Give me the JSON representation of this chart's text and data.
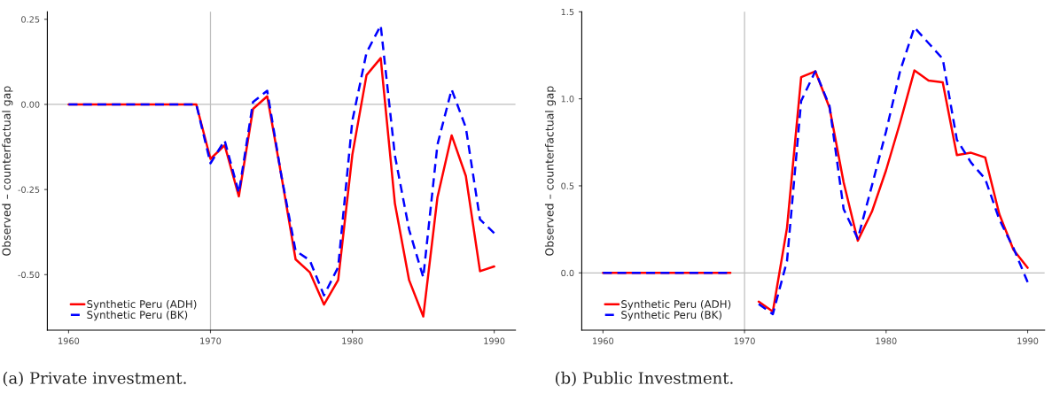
{
  "chart_data": [
    {
      "type": "line",
      "ylabel": "Observed – counterfactual gap",
      "annotations": [
        "(a) Private investment."
      ],
      "x": [
        1960,
        1961,
        1962,
        1963,
        1964,
        1965,
        1966,
        1967,
        1968,
        1969,
        1970,
        1971,
        1972,
        1973,
        1974,
        1975,
        1976,
        1977,
        1978,
        1979,
        1980,
        1981,
        1982,
        1983,
        1984,
        1985,
        1986,
        1987,
        1988,
        1989,
        1990
      ],
      "series": [
        {
          "name": "Synthetic Peru (ADH)",
          "color": "#ff0000",
          "line_style": "solid",
          "values": [
            0,
            0,
            0,
            0,
            0,
            0,
            0,
            0,
            0,
            0,
            -0.16,
            -0.12,
            -0.27,
            -0.013,
            0.024,
            -0.21,
            -0.455,
            -0.493,
            -0.588,
            -0.516,
            -0.148,
            0.086,
            0.136,
            -0.291,
            -0.516,
            -0.623,
            -0.273,
            -0.091,
            -0.21,
            -0.49,
            -0.476
          ]
        },
        {
          "name": "Synthetic Peru (BK)",
          "color": "#0000ff",
          "line_style": "dashed",
          "values": [
            0,
            0,
            0,
            0,
            0,
            0,
            0,
            0,
            0,
            0,
            -0.173,
            -0.106,
            -0.26,
            0.007,
            0.04,
            -0.21,
            -0.43,
            -0.458,
            -0.561,
            -0.478,
            -0.048,
            0.152,
            0.232,
            -0.15,
            -0.368,
            -0.508,
            -0.118,
            0.044,
            -0.068,
            -0.338,
            -0.378
          ]
        }
      ],
      "xlim": [
        1958.5,
        1991.5
      ],
      "xticks": [
        1960,
        1970,
        1980,
        1990
      ],
      "ylim": [
        -0.663,
        0.272
      ],
      "yticks": [
        {
          "value": -0.5,
          "label": "-0.50"
        },
        {
          "value": -0.25,
          "label": "-0.25"
        },
        {
          "value": 0,
          "label": "0.00"
        },
        {
          "value": 0.25,
          "label": "0.25"
        }
      ],
      "ref_lines": [
        {
          "axis": "x",
          "value": 1970,
          "color": "#bebebe"
        },
        {
          "axis": "y",
          "value": 0,
          "color": "#bebebe"
        }
      ],
      "grid": false,
      "legend": "bottom left"
    },
    {
      "type": "line",
      "ylabel": "Observed – counterfactual gap",
      "annotations": [
        "(b) Public Investment."
      ],
      "x": [
        1960,
        1961,
        1962,
        1963,
        1964,
        1965,
        1966,
        1967,
        1968,
        1969,
        1970,
        1971,
        1972,
        1973,
        1974,
        1975,
        1976,
        1977,
        1978,
        1979,
        1980,
        1981,
        1982,
        1983,
        1984,
        1985,
        1986,
        1987,
        1988,
        1989,
        1990
      ],
      "series": [
        {
          "name": "Synthetic Peru (ADH)",
          "color": "#ff0000",
          "line_style": "solid",
          "values": [
            0,
            0,
            0,
            0,
            0,
            0,
            0,
            0,
            0,
            0,
            null,
            -0.165,
            -0.222,
            0.259,
            1.125,
            1.158,
            0.95,
            0.52,
            0.185,
            0.352,
            0.59,
            0.866,
            1.163,
            1.105,
            1.095,
            0.677,
            0.69,
            0.663,
            0.337,
            0.132,
            0.029
          ]
        },
        {
          "name": "Synthetic Peru (BK)",
          "color": "#0000ff",
          "line_style": "dashed",
          "values": [
            0,
            0,
            0,
            0,
            0,
            0,
            0,
            0,
            0,
            0,
            null,
            -0.179,
            -0.237,
            0.068,
            0.988,
            1.158,
            0.96,
            0.366,
            0.196,
            0.502,
            0.813,
            1.163,
            1.41,
            1.32,
            1.23,
            0.765,
            0.634,
            0.54,
            0.307,
            0.142,
            -0.053
          ]
        }
      ],
      "xlim": [
        1958.5,
        1991.2
      ],
      "xticks": [
        1960,
        1970,
        1980,
        1990
      ],
      "ylim": [
        -0.329,
        1.5
      ],
      "yticks": [
        {
          "value": 0,
          "label": "0.0"
        },
        {
          "value": 0.5,
          "label": "0.5"
        },
        {
          "value": 1,
          "label": "1.0"
        },
        {
          "value": 1.5,
          "label": "1.5"
        }
      ],
      "ref_lines": [
        {
          "axis": "x",
          "value": 1970,
          "color": "#bebebe"
        },
        {
          "axis": "y",
          "value": 0,
          "color": "#bebebe"
        }
      ],
      "grid": false,
      "legend": "bottom left"
    }
  ]
}
